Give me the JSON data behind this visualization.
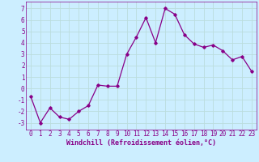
{
  "x": [
    0,
    1,
    2,
    3,
    4,
    5,
    6,
    7,
    8,
    9,
    10,
    11,
    12,
    13,
    14,
    15,
    16,
    17,
    18,
    19,
    20,
    21,
    22,
    23
  ],
  "y": [
    -0.7,
    -3.0,
    -1.7,
    -2.5,
    -2.7,
    -2.0,
    -1.5,
    0.3,
    0.2,
    0.2,
    3.0,
    4.5,
    6.2,
    4.0,
    7.0,
    6.5,
    4.7,
    3.9,
    3.6,
    3.8,
    3.3,
    2.5,
    2.8,
    1.5
  ],
  "line_color": "#880088",
  "marker": "D",
  "markersize": 1.8,
  "linewidth": 0.9,
  "bg_color": "#cceeff",
  "grid_color": "#bbdddd",
  "xlabel": "Windchill (Refroidissement éolien,°C)",
  "ylabel_ticks": [
    -3,
    -2,
    -1,
    0,
    1,
    2,
    3,
    4,
    5,
    6,
    7
  ],
  "xlim": [
    -0.5,
    23.5
  ],
  "ylim": [
    -3.6,
    7.6
  ],
  "xlabel_fontsize": 6.0,
  "tick_fontsize": 5.5,
  "label_color": "#880088"
}
